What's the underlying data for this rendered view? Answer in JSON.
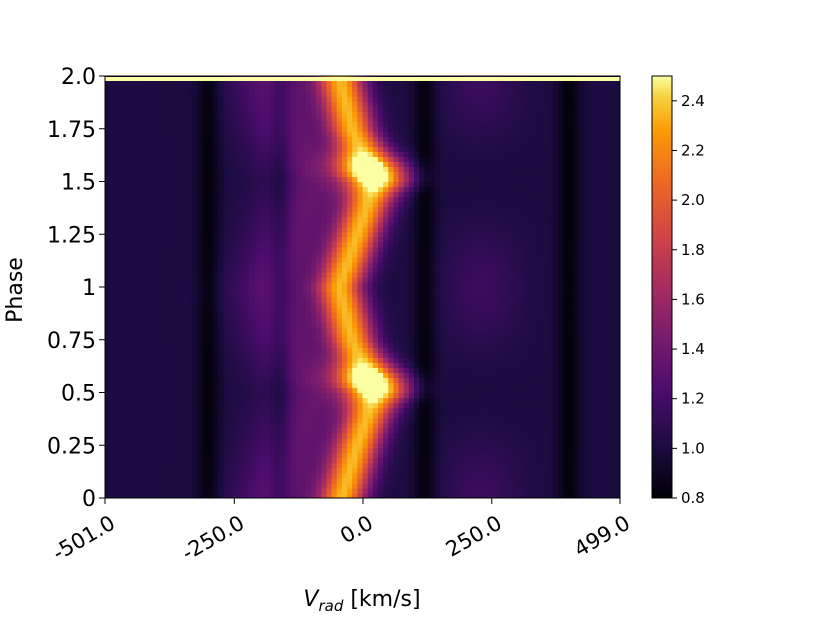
{
  "chart_data": {
    "type": "heatmap",
    "title": "",
    "xlabel_main": "V",
    "xlabel_sub": "rad",
    "xlabel_unit": " [km/s]",
    "ylabel": "Phase",
    "xlim": [
      -501.0,
      499.0
    ],
    "ylim": [
      0,
      2.0
    ],
    "xtick_values": [
      -501.0,
      -250.0,
      0.0,
      250.0,
      499.0
    ],
    "xtick_labels": [
      "-501.0",
      "-250.0",
      "0.0",
      "250.0",
      "499.0"
    ],
    "ytick_values": [
      0,
      0.25,
      0.5,
      0.75,
      1,
      1.25,
      1.5,
      1.75,
      2.0
    ],
    "ytick_labels": [
      "0",
      "0.25",
      "0.5",
      "0.75",
      "1",
      "1.25",
      "1.5",
      "1.75",
      "2.0"
    ],
    "colorbar": {
      "colormap": "inferno",
      "range": [
        0.8,
        2.5
      ],
      "tick_values": [
        0.8,
        1.0,
        1.2,
        1.4,
        1.6,
        1.8,
        2.0,
        2.2,
        2.4
      ],
      "tick_labels": [
        "0.8",
        "1.0",
        "1.2",
        "1.4",
        "1.6",
        "1.8",
        "2.0",
        "2.2",
        "2.4"
      ]
    },
    "description_of_field": {
      "emission_peak_velocity_by_phase": [
        {
          "phase": 0.0,
          "v": -40
        },
        {
          "phase": 0.25,
          "v": -10
        },
        {
          "phase": 0.5,
          "v": 25
        },
        {
          "phase": 0.75,
          "v": -20
        },
        {
          "phase": 1.0,
          "v": -45
        },
        {
          "phase": 1.25,
          "v": -10
        },
        {
          "phase": 1.5,
          "v": 25
        },
        {
          "phase": 1.75,
          "v": -20
        },
        {
          "phase": 2.0,
          "v": -45
        }
      ],
      "absorption_velocities": [
        -300,
        -160,
        120,
        400
      ],
      "background_level": 1.0,
      "peak_level": 2.5
    }
  }
}
